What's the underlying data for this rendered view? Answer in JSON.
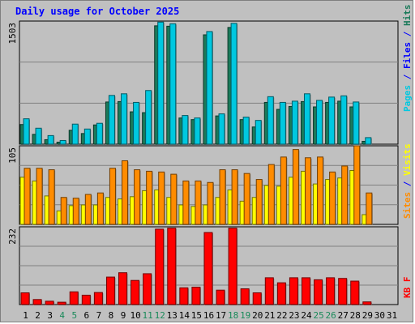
{
  "colors": {
    "hits": "#00c8e0",
    "files": "#1a7a5a",
    "pages": "#00c8e0",
    "visits": "#ffff00",
    "sites": "#ff8c00",
    "kbytes": "#ff0000",
    "slash": "#0000ff",
    "weekend": "#1a8a5a",
    "weekday": "#000000",
    "title": "#0000ff"
  },
  "chart_data": [
    {
      "type": "bar",
      "title": "Daily usage for October 2025",
      "days": [
        "1",
        "2",
        "3",
        "4",
        "5",
        "6",
        "7",
        "8",
        "9",
        "10",
        "11",
        "12",
        "13",
        "14",
        "15",
        "16",
        "17",
        "18",
        "19",
        "20",
        "21",
        "22",
        "23",
        "24",
        "25",
        "26",
        "27",
        "28",
        "29",
        "30",
        "31"
      ],
      "weekend_days": [
        "4",
        "5",
        "11",
        "12",
        "18",
        "19",
        "25",
        "26"
      ],
      "ymax_label": "1503",
      "ymax": 1503,
      "series": [
        {
          "name": "Hits",
          "values": [
            310,
            195,
            105,
            45,
            245,
            185,
            255,
            595,
            615,
            510,
            655,
            1490,
            1470,
            350,
            320,
            1375,
            370,
            1475,
            330,
            290,
            580,
            510,
            525,
            615,
            535,
            575,
            590,
            515,
            80,
            0,
            0
          ]
        },
        {
          "name": "Files",
          "values": [
            240,
            120,
            55,
            25,
            170,
            130,
            235,
            515,
            520,
            395,
            385,
            1445,
            1440,
            320,
            300,
            1335,
            345,
            1425,
            300,
            210,
            510,
            425,
            460,
            520,
            455,
            510,
            525,
            455,
            35,
            0,
            0
          ]
        },
        {
          "name": "Pages",
          "values": []
        }
      ],
      "right_labels": [
        "Pages",
        "Files",
        "Hits"
      ]
    },
    {
      "type": "bar",
      "days": [
        "1",
        "2",
        "3",
        "4",
        "5",
        "6",
        "7",
        "8",
        "9",
        "10",
        "11",
        "12",
        "13",
        "14",
        "15",
        "16",
        "17",
        "18",
        "19",
        "20",
        "21",
        "22",
        "23",
        "24",
        "25",
        "26",
        "27",
        "28",
        "29",
        "30",
        "31"
      ],
      "ymax_label": "105",
      "ymax": 105,
      "series": [
        {
          "name": "Visits",
          "values": [
            63,
            58,
            38,
            18,
            25,
            26,
            26,
            36,
            34,
            37,
            45,
            46,
            36,
            26,
            24,
            26,
            36,
            46,
            31,
            36,
            52,
            51,
            63,
            71,
            54,
            60,
            62,
            72,
            13,
            0,
            0
          ]
        },
        {
          "name": "Sites",
          "values": [
            75,
            75,
            73,
            36,
            35,
            40,
            42,
            75,
            85,
            73,
            71,
            70,
            67,
            58,
            58,
            56,
            73,
            73,
            68,
            60,
            80,
            90,
            100,
            89,
            90,
            70,
            78,
            105,
            42,
            0,
            0
          ]
        }
      ],
      "right_labels": [
        "Sites",
        "Visits"
      ]
    },
    {
      "type": "bar",
      "days": [
        "1",
        "2",
        "3",
        "4",
        "5",
        "6",
        "7",
        "8",
        "9",
        "10",
        "11",
        "12",
        "13",
        "14",
        "15",
        "16",
        "17",
        "18",
        "19",
        "20",
        "21",
        "22",
        "23",
        "24",
        "25",
        "26",
        "27",
        "28",
        "29",
        "30",
        "31"
      ],
      "ymax_label": "232",
      "ymax": 232,
      "series": [
        {
          "name": "KBytes",
          "values": [
            35,
            15,
            10,
            7,
            38,
            28,
            36,
            82,
            95,
            72,
            92,
            225,
            228,
            50,
            52,
            215,
            43,
            228,
            47,
            35,
            80,
            65,
            80,
            80,
            74,
            80,
            78,
            70,
            8,
            0,
            0
          ]
        }
      ],
      "right_labels": [
        "KB F"
      ]
    }
  ]
}
